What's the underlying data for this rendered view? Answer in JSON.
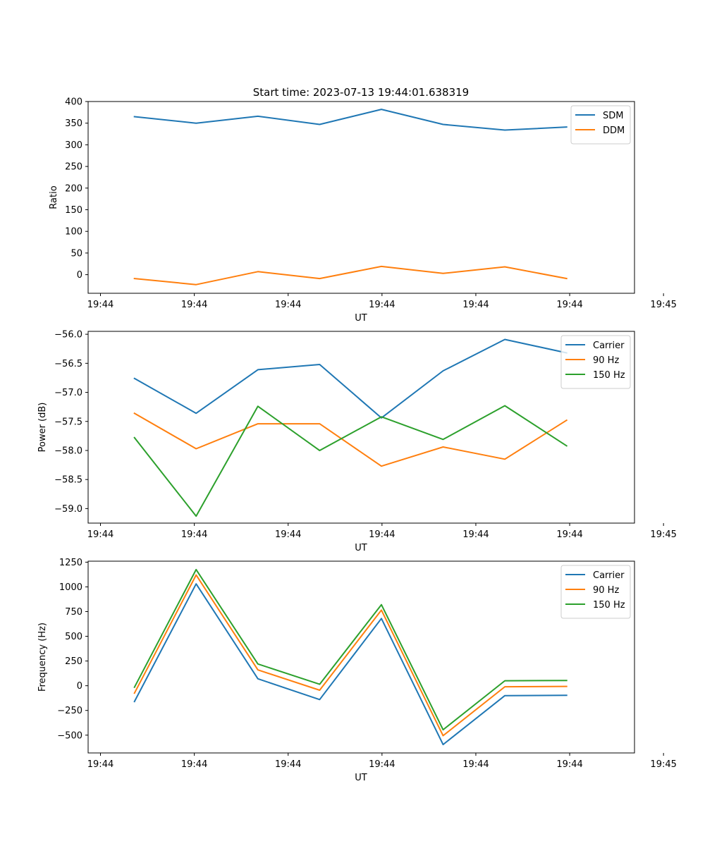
{
  "figure_title": "Start time: 2023-07-13 19:44:01.638319",
  "colors": {
    "blue": "#1f77b4",
    "orange": "#ff7f0e",
    "green": "#2ca02c"
  },
  "chart_data": [
    {
      "type": "line",
      "title": "Start time: 2023-07-13 19:44:01.638319",
      "xlabel": "UT",
      "ylabel": "Ratio",
      "x": [
        1,
        2,
        3,
        4,
        5,
        6,
        7,
        8
      ],
      "xlim": [
        0.25,
        9.1
      ],
      "x_ticks": [
        {
          "value": 0.45,
          "label": "19:44"
        },
        {
          "value": 1.97,
          "label": "19:44"
        },
        {
          "value": 3.49,
          "label": "19:44"
        },
        {
          "value": 5.01,
          "label": "19:44"
        },
        {
          "value": 6.53,
          "label": "19:44"
        },
        {
          "value": 8.05,
          "label": "19:44"
        },
        {
          "value": 9.57,
          "label": "19:45"
        }
      ],
      "ylim": [
        -43,
        400
      ],
      "y_ticks": [
        {
          "value": 0,
          "label": "0"
        },
        {
          "value": 50,
          "label": "50"
        },
        {
          "value": 100,
          "label": "100"
        },
        {
          "value": 150,
          "label": "150"
        },
        {
          "value": 200,
          "label": "200"
        },
        {
          "value": 250,
          "label": "250"
        },
        {
          "value": 300,
          "label": "300"
        },
        {
          "value": 350,
          "label": "350"
        },
        {
          "value": 400,
          "label": "400"
        }
      ],
      "legend_position": "top-right",
      "series": [
        {
          "name": "SDM",
          "color": "#1f77b4",
          "values": [
            365,
            350,
            366,
            347,
            382,
            347,
            334,
            341
          ]
        },
        {
          "name": "DDM",
          "color": "#ff7f0e",
          "values": [
            -9,
            -23,
            7,
            -9,
            19,
            3,
            18,
            -9
          ]
        }
      ]
    },
    {
      "type": "line",
      "title": "",
      "xlabel": "UT",
      "ylabel": "Power (dB)",
      "x": [
        1,
        2,
        3,
        4,
        5,
        6,
        7,
        8
      ],
      "xlim": [
        0.25,
        9.1
      ],
      "x_ticks": [
        {
          "value": 0.45,
          "label": "19:44"
        },
        {
          "value": 1.97,
          "label": "19:44"
        },
        {
          "value": 3.49,
          "label": "19:44"
        },
        {
          "value": 5.01,
          "label": "19:44"
        },
        {
          "value": 6.53,
          "label": "19:44"
        },
        {
          "value": 8.05,
          "label": "19:44"
        },
        {
          "value": 9.57,
          "label": "19:45"
        }
      ],
      "ylim": [
        -59.25,
        -55.95
      ],
      "y_ticks": [
        {
          "value": -59.0,
          "label": "−59.0"
        },
        {
          "value": -58.5,
          "label": "−58.5"
        },
        {
          "value": -58.0,
          "label": "−58.0"
        },
        {
          "value": -57.5,
          "label": "−57.5"
        },
        {
          "value": -57.0,
          "label": "−57.0"
        },
        {
          "value": -56.5,
          "label": "−56.5"
        },
        {
          "value": -56.0,
          "label": "−56.0"
        }
      ],
      "legend_position": "top-right",
      "series": [
        {
          "name": "Carrier",
          "color": "#1f77b4",
          "values": [
            -56.76,
            -57.36,
            -56.61,
            -56.52,
            -57.44,
            -56.63,
            -56.09,
            -56.32
          ]
        },
        {
          "name": "90 Hz",
          "color": "#ff7f0e",
          "values": [
            -57.36,
            -57.97,
            -57.54,
            -57.54,
            -58.27,
            -57.94,
            -58.15,
            -57.48
          ]
        },
        {
          "name": "150 Hz",
          "color": "#2ca02c",
          "values": [
            -57.78,
            -59.13,
            -57.24,
            -58.0,
            -57.42,
            -57.81,
            -57.23,
            -57.92
          ]
        }
      ]
    },
    {
      "type": "line",
      "title": "",
      "xlabel": "UT",
      "ylabel": "Frequency (Hz)",
      "x": [
        1,
        2,
        3,
        4,
        5,
        6,
        7,
        8
      ],
      "xlim": [
        0.25,
        9.1
      ],
      "x_ticks": [
        {
          "value": 0.45,
          "label": "19:44"
        },
        {
          "value": 1.97,
          "label": "19:44"
        },
        {
          "value": 3.49,
          "label": "19:44"
        },
        {
          "value": 5.01,
          "label": "19:44"
        },
        {
          "value": 6.53,
          "label": "19:44"
        },
        {
          "value": 8.05,
          "label": "19:44"
        },
        {
          "value": 9.57,
          "label": "19:45"
        }
      ],
      "ylim": [
        -680,
        1260
      ],
      "y_ticks": [
        {
          "value": -500,
          "label": "−500"
        },
        {
          "value": -250,
          "label": "−250"
        },
        {
          "value": 0,
          "label": "0"
        },
        {
          "value": 250,
          "label": "250"
        },
        {
          "value": 500,
          "label": "500"
        },
        {
          "value": 750,
          "label": "750"
        },
        {
          "value": 1000,
          "label": "1000"
        },
        {
          "value": 1250,
          "label": "1250"
        }
      ],
      "legend_position": "top-right",
      "series": [
        {
          "name": "Carrier",
          "color": "#1f77b4",
          "values": [
            -160,
            1030,
            70,
            -140,
            680,
            -595,
            -100,
            -97
          ]
        },
        {
          "name": "90 Hz",
          "color": "#ff7f0e",
          "values": [
            -75,
            1120,
            160,
            -45,
            765,
            -505,
            -10,
            -7
          ]
        },
        {
          "name": "150 Hz",
          "color": "#2ca02c",
          "values": [
            -15,
            1175,
            220,
            15,
            820,
            -445,
            50,
            53
          ]
        }
      ]
    }
  ]
}
